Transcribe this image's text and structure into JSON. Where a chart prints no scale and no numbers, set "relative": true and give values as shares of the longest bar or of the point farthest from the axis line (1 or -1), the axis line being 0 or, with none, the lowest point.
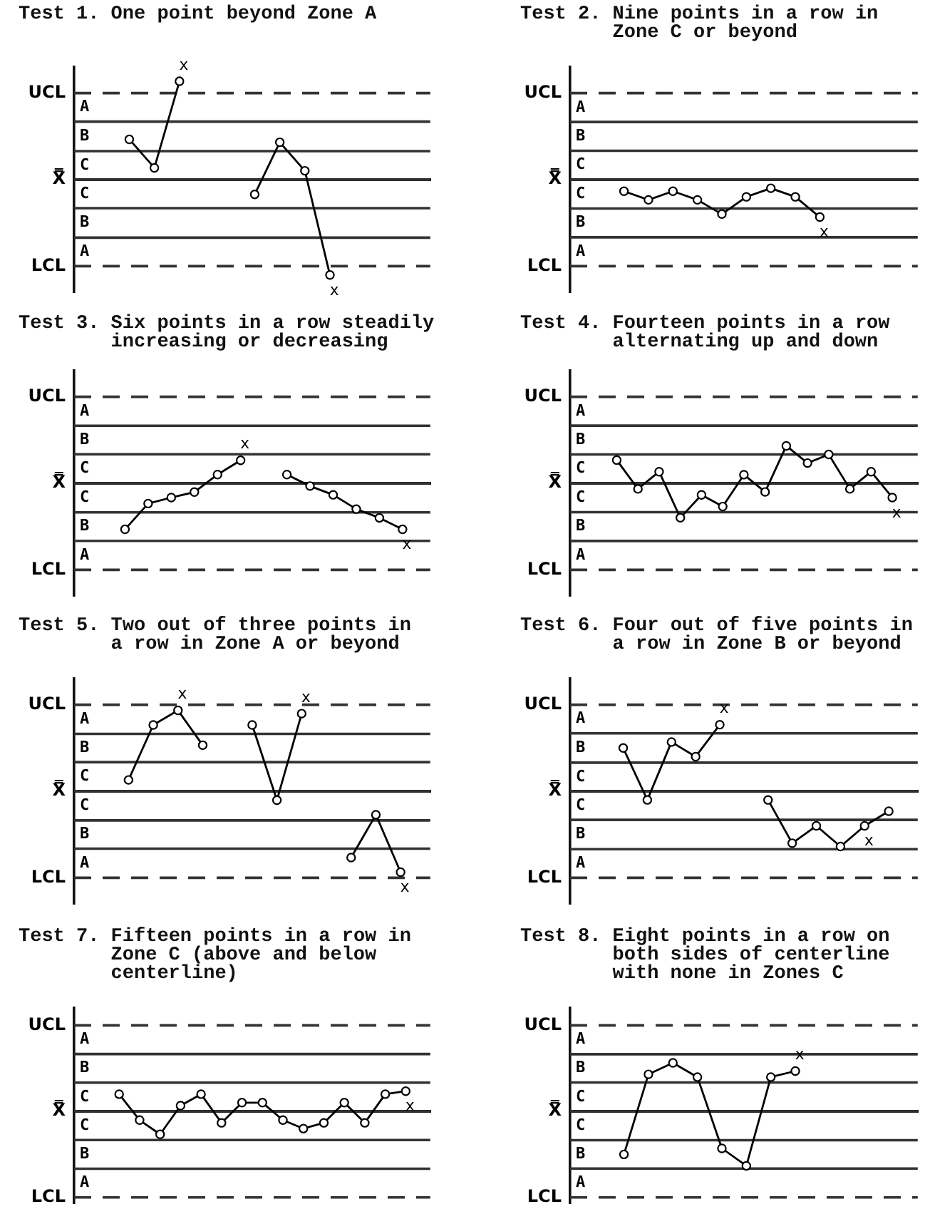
{
  "chart_data": [
    {
      "type": "line",
      "title": "Test 1. One point beyond Zone A",
      "categories": [
        null,
        null,
        null,
        null,
        null,
        null,
        null,
        null,
        null
      ],
      "relative": true,
      "marker": "circle",
      "series": [
        {
          "color": "#000000",
          "values": [
            0.41,
            0.12,
            1,
            null,
            null,
            null,
            null,
            null,
            null
          ]
        },
        {
          "color": "#000000",
          "values": [
            null,
            null,
            null,
            null,
            null,
            -0.15,
            0.38,
            0.09,
            -0.97
          ]
        }
      ],
      "ref_lines": [
        {
          "axis": "y",
          "value": 0.88,
          "label": "UCL",
          "line_style": "dashed"
        },
        {
          "axis": "y",
          "value": 0.59
        },
        {
          "axis": "y",
          "value": 0.29
        },
        {
          "axis": "y",
          "value": 0,
          "label": "X̿"
        },
        {
          "axis": "y",
          "value": -0.29
        },
        {
          "axis": "y",
          "value": -0.59
        },
        {
          "axis": "y",
          "value": -0.88,
          "label": "LCL",
          "line_style": "dashed"
        }
      ],
      "annotations": [
        "A",
        "B",
        "C",
        "C",
        "B",
        "A",
        {
          "text": "x",
          "y": 1
        },
        {
          "text": "x",
          "y": -0.97
        }
      ]
    },
    {
      "type": "line",
      "title": "Test 2. Nine points in a row in\nZone C or beyond",
      "categories": [
        null,
        null,
        null,
        null,
        null,
        null,
        null,
        null,
        null
      ],
      "relative": true,
      "marker": "circle",
      "series": [
        {
          "color": "#000000",
          "values": [
            -0.31,
            -0.54,
            -0.31,
            -0.54,
            -0.92,
            -0.46,
            -0.23,
            -0.46,
            -1
          ]
        }
      ],
      "ref_lines": [
        {
          "axis": "y",
          "value": 2.31,
          "label": "UCL",
          "line_style": "dashed"
        },
        {
          "axis": "y",
          "value": 1.54
        },
        {
          "axis": "y",
          "value": 0.77
        },
        {
          "axis": "y",
          "value": 0,
          "label": "X̿"
        },
        {
          "axis": "y",
          "value": -0.77
        },
        {
          "axis": "y",
          "value": -1.54
        },
        {
          "axis": "y",
          "value": -2.31,
          "label": "LCL",
          "line_style": "dashed"
        }
      ],
      "annotations": [
        "A",
        "B",
        "C",
        "C",
        "B",
        "A",
        {
          "text": "x",
          "y": -1
        }
      ]
    },
    {
      "type": "line",
      "title": "Test 3. Six points in a row steadily\nincreasing or decreasing",
      "categories": [
        null,
        null,
        null,
        null,
        null,
        null,
        null,
        null,
        null,
        null,
        null,
        null,
        null
      ],
      "relative": true,
      "marker": "circle",
      "series": [
        {
          "color": "#000000",
          "values": [
            -1,
            -0.44,
            -0.31,
            -0.19,
            0.19,
            0.5,
            null,
            null,
            null,
            null,
            null,
            null,
            null
          ]
        },
        {
          "color": "#000000",
          "values": [
            null,
            null,
            null,
            null,
            null,
            null,
            null,
            0.19,
            -0.06,
            -0.25,
            -0.56,
            -0.75,
            -1
          ]
        }
      ],
      "ref_lines": [
        {
          "axis": "y",
          "value": 1.88,
          "label": "UCL",
          "line_style": "dashed"
        },
        {
          "axis": "y",
          "value": 1.25
        },
        {
          "axis": "y",
          "value": 0.63
        },
        {
          "axis": "y",
          "value": 0,
          "label": "X̿"
        },
        {
          "axis": "y",
          "value": -0.63
        },
        {
          "axis": "y",
          "value": -1.25
        },
        {
          "axis": "y",
          "value": -1.88,
          "label": "LCL",
          "line_style": "dashed"
        }
      ],
      "annotations": [
        "A",
        "B",
        "C",
        "C",
        "B",
        "A",
        {
          "text": "x",
          "y": 0.5
        },
        {
          "text": "x",
          "y": -1
        }
      ]
    },
    {
      "type": "line",
      "title": "Test 4. Fourteen points in a row\nalternating up and down",
      "categories": [
        null,
        null,
        null,
        null,
        null,
        null,
        null,
        null,
        null,
        null,
        null,
        null,
        null,
        null
      ],
      "relative": true,
      "marker": "circle",
      "series": [
        {
          "color": "#000000",
          "values": [
            0.62,
            -0.15,
            0.31,
            -0.92,
            -0.31,
            -0.62,
            0.23,
            -0.23,
            1,
            0.54,
            0.77,
            -0.15,
            0.31,
            -0.38
          ]
        }
      ],
      "ref_lines": [
        {
          "axis": "y",
          "value": 2.31,
          "label": "UCL",
          "line_style": "dashed"
        },
        {
          "axis": "y",
          "value": 1.54
        },
        {
          "axis": "y",
          "value": 0.77
        },
        {
          "axis": "y",
          "value": 0,
          "label": "X̿"
        },
        {
          "axis": "y",
          "value": -0.77
        },
        {
          "axis": "y",
          "value": -1.54
        },
        {
          "axis": "y",
          "value": -2.31,
          "label": "LCL",
          "line_style": "dashed"
        }
      ],
      "annotations": [
        "A",
        "B",
        "C",
        "C",
        "B",
        "A",
        {
          "text": "x",
          "y": -0.38
        }
      ]
    },
    {
      "type": "line",
      "title": "Test 5. Two out of three points in\na row in Zone A or beyond",
      "categories": [
        null,
        null,
        null,
        null,
        null,
        null,
        null,
        null,
        null,
        null,
        null,
        null
      ],
      "relative": true,
      "marker": "circle",
      "series": [
        {
          "color": "#000000",
          "values": [
            0.14,
            0.82,
            1,
            0.57,
            null,
            null,
            null,
            null,
            null,
            null,
            null,
            null
          ]
        },
        {
          "color": "#000000",
          "values": [
            null,
            null,
            null,
            null,
            null,
            0.82,
            -0.11,
            0.96,
            null,
            null,
            null,
            null
          ]
        },
        {
          "color": "#000000",
          "values": [
            null,
            null,
            null,
            null,
            null,
            null,
            null,
            null,
            null,
            -0.82,
            -0.29,
            -1
          ]
        }
      ],
      "ref_lines": [
        {
          "axis": "y",
          "value": 1.07,
          "label": "UCL",
          "line_style": "dashed"
        },
        {
          "axis": "y",
          "value": 0.71
        },
        {
          "axis": "y",
          "value": 0.36
        },
        {
          "axis": "y",
          "value": 0,
          "label": "X̿"
        },
        {
          "axis": "y",
          "value": -0.36
        },
        {
          "axis": "y",
          "value": -0.71
        },
        {
          "axis": "y",
          "value": -1.07,
          "label": "LCL",
          "line_style": "dashed"
        }
      ],
      "annotations": [
        "A",
        "B",
        "C",
        "C",
        "B",
        "A",
        {
          "text": "x",
          "y": 1
        },
        {
          "text": "x",
          "y": 0.96
        },
        {
          "text": "x",
          "y": -1
        }
      ]
    },
    {
      "type": "line",
      "title": "Test 6. Four out of five points in\na row in Zone B or beyond",
      "categories": [
        null,
        null,
        null,
        null,
        null,
        null,
        null,
        null,
        null,
        null,
        null,
        null
      ],
      "relative": true,
      "marker": "circle",
      "series": [
        {
          "color": "#000000",
          "values": [
            0.65,
            -0.13,
            0.74,
            0.52,
            1,
            null,
            null,
            null,
            null,
            null,
            null,
            null
          ]
        },
        {
          "color": "#000000",
          "values": [
            null,
            null,
            null,
            null,
            null,
            null,
            -0.13,
            -0.78,
            -0.52,
            -0.83,
            -0.52,
            -0.3
          ]
        }
      ],
      "ref_lines": [
        {
          "axis": "y",
          "value": 1.3,
          "label": "UCL",
          "line_style": "dashed"
        },
        {
          "axis": "y",
          "value": 0.87
        },
        {
          "axis": "y",
          "value": 0.43
        },
        {
          "axis": "y",
          "value": 0,
          "label": "X̿"
        },
        {
          "axis": "y",
          "value": -0.43
        },
        {
          "axis": "y",
          "value": -0.87
        },
        {
          "axis": "y",
          "value": -1.3,
          "label": "LCL",
          "line_style": "dashed"
        }
      ],
      "annotations": [
        "A",
        "B",
        "C",
        "C",
        "B",
        "A",
        {
          "text": "x",
          "y": 1
        },
        {
          "text": "x",
          "y": -0.52
        }
      ]
    },
    {
      "type": "line",
      "title": "Test 7. Fifteen points in a row in\nZone C (above and below\ncenterline)",
      "categories": [
        null,
        null,
        null,
        null,
        null,
        null,
        null,
        null,
        null,
        null,
        null,
        null,
        null,
        null,
        null
      ],
      "relative": true,
      "marker": "circle",
      "series": [
        {
          "color": "#000000",
          "values": [
            0.75,
            -0.38,
            -1,
            0.25,
            0.75,
            -0.5,
            0.38,
            0.38,
            -0.38,
            -0.75,
            -0.5,
            0.38,
            -0.5,
            0.75,
            0.88
          ]
        }
      ],
      "ref_lines": [
        {
          "axis": "y",
          "value": 3.75,
          "label": "UCL",
          "line_style": "dashed"
        },
        {
          "axis": "y",
          "value": 2.5
        },
        {
          "axis": "y",
          "value": 1.25
        },
        {
          "axis": "y",
          "value": 0,
          "label": "X̿"
        },
        {
          "axis": "y",
          "value": -1.25
        },
        {
          "axis": "y",
          "value": -2.5
        },
        {
          "axis": "y",
          "value": -3.75,
          "label": "LCL",
          "line_style": "dashed"
        }
      ],
      "annotations": [
        "A",
        "B",
        "C",
        "C",
        "B",
        "A",
        {
          "text": "x",
          "y": 0.88
        }
      ]
    },
    {
      "type": "line",
      "title": "Test 8. Eight points in a row on\nboth sides of centerline\nwith none in Zones C",
      "categories": [
        null,
        null,
        null,
        null,
        null,
        null,
        null,
        null
      ],
      "relative": true,
      "marker": "circle",
      "series": [
        {
          "color": "#000000",
          "values": [
            -0.79,
            0.68,
            0.89,
            0.63,
            -0.68,
            -1,
            0.63,
            0.74
          ]
        }
      ],
      "ref_lines": [
        {
          "axis": "y",
          "value": 1.58,
          "label": "UCL",
          "line_style": "dashed"
        },
        {
          "axis": "y",
          "value": 1.05
        },
        {
          "axis": "y",
          "value": 0.53
        },
        {
          "axis": "y",
          "value": 0,
          "label": "X̿"
        },
        {
          "axis": "y",
          "value": -0.53
        },
        {
          "axis": "y",
          "value": -1.05
        },
        {
          "axis": "y",
          "value": -1.58,
          "label": "LCL",
          "line_style": "dashed"
        }
      ],
      "annotations": [
        "A",
        "B",
        "C",
        "C",
        "B",
        "A",
        {
          "text": "x",
          "y": 0.74
        }
      ]
    }
  ]
}
